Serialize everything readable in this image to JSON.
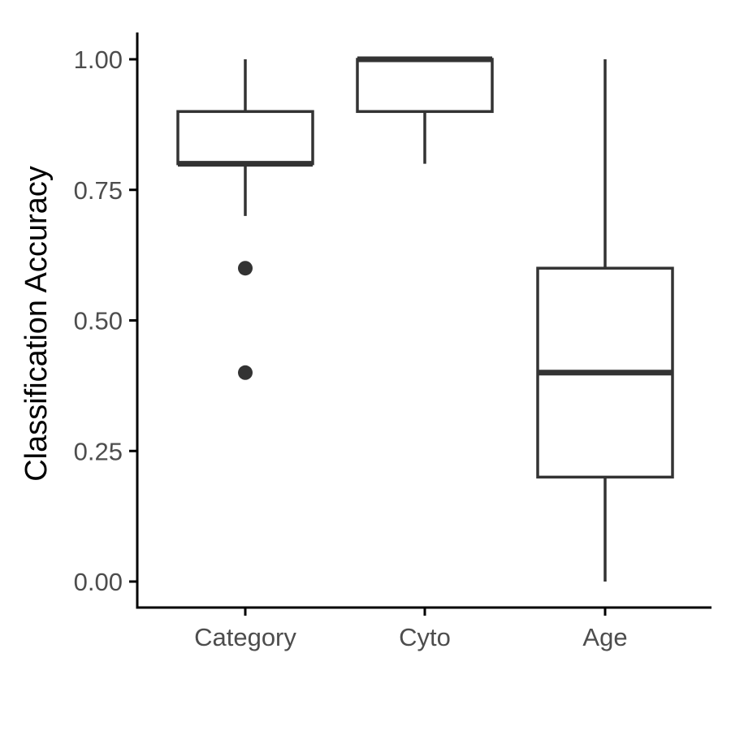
{
  "chart_data": {
    "type": "boxplot",
    "title": "",
    "xlabel": "",
    "ylabel": "Classification Accuracy",
    "ylim": [
      -0.05,
      1.05
    ],
    "yticks": [
      0.0,
      0.25,
      0.5,
      0.75,
      1.0
    ],
    "ytick_labels": [
      "0.00",
      "0.25",
      "0.50",
      "0.75",
      "1.00"
    ],
    "categories": [
      "Category",
      "Cyto",
      "Age"
    ],
    "boxes": [
      {
        "category": "Category",
        "whisker_low": 0.7,
        "q1": 0.8,
        "median": 0.8,
        "q3": 0.9,
        "whisker_high": 1.0,
        "outliers": [
          0.6,
          0.4
        ]
      },
      {
        "category": "Cyto",
        "whisker_low": 0.8,
        "q1": 0.9,
        "median": 1.0,
        "q3": 1.0,
        "whisker_high": 1.0,
        "outliers": []
      },
      {
        "category": "Age",
        "whisker_low": 0.0,
        "q1": 0.2,
        "median": 0.4,
        "q3": 0.6,
        "whisker_high": 1.0,
        "outliers": []
      }
    ],
    "grid": false,
    "legend": "none",
    "colors": {
      "box_stroke": "#333333",
      "box_fill": "#ffffff",
      "axis": "#000000",
      "tick_text": "#4d4d4d",
      "title_text": "#000000"
    }
  }
}
